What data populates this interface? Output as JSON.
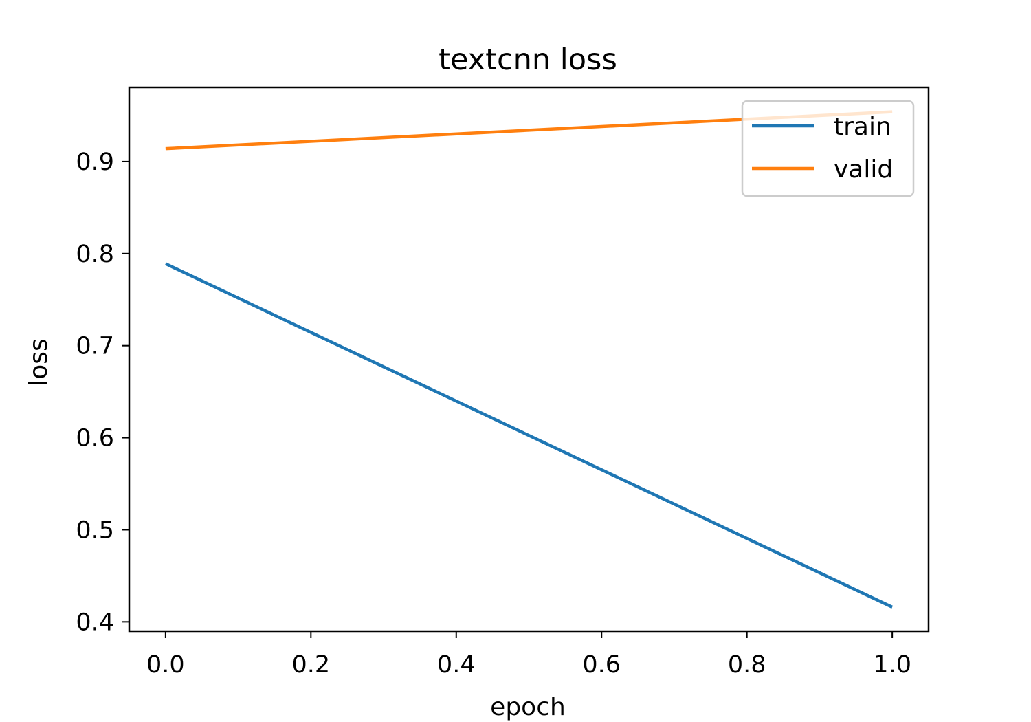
{
  "chart_data": {
    "type": "line",
    "title": "textcnn loss",
    "xlabel": "epoch",
    "ylabel": "loss",
    "x": [
      0.0,
      1.0
    ],
    "series": [
      {
        "name": "train",
        "values": [
          0.789,
          0.416
        ],
        "color": "#1f77b4"
      },
      {
        "name": "valid",
        "values": [
          0.914,
          0.954
        ],
        "color": "#ff7f0e"
      }
    ],
    "xlim": [
      -0.05,
      1.05
    ],
    "ylim": [
      0.3898,
      0.9806
    ],
    "xticks": [
      0.0,
      0.2,
      0.4,
      0.6,
      0.8,
      1.0
    ],
    "xtick_labels": [
      "0.0",
      "0.2",
      "0.4",
      "0.6",
      "0.8",
      "1.0"
    ],
    "yticks": [
      0.4,
      0.5,
      0.6,
      0.7,
      0.8,
      0.9
    ],
    "ytick_labels": [
      "0.4",
      "0.5",
      "0.6",
      "0.7",
      "0.8",
      "0.9"
    ],
    "grid": false,
    "legend_position": "upper right"
  }
}
